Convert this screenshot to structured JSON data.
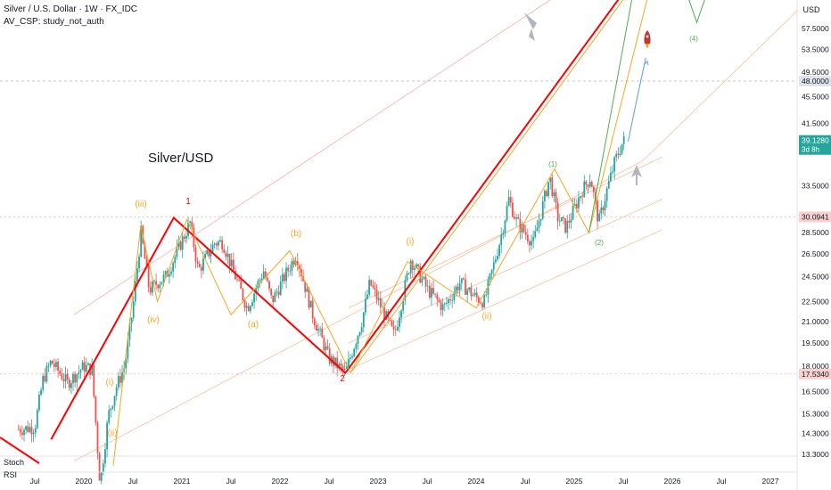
{
  "header": {
    "title": "Silver / U.S. Dollar · 1W · FX_IDC",
    "indicator": "AV_CSP: study_not_auth"
  },
  "annotation_text": "Silver/USD",
  "price_axis": {
    "currency": "USD",
    "ticks": [
      "57.5000",
      "53.5000",
      "49.5000",
      "45.5000",
      "41.5000",
      "33.5000",
      "28.5000",
      "26.5000",
      "24.5000",
      "22.5000",
      "21.0000",
      "19.5000",
      "18.0000",
      "16.5000",
      "15.3000",
      "14.3000",
      "13.3000"
    ],
    "tags": [
      {
        "label": "48.0000",
        "value": 48.0,
        "style": "gray"
      },
      {
        "label": "39.1280",
        "sub": "3d 8h",
        "value": 39.128,
        "style": "green"
      },
      {
        "label": "30.0941",
        "value": 30.0941,
        "style": "pink"
      },
      {
        "label": "17.5340",
        "value": 17.534,
        "style": "pink"
      }
    ]
  },
  "time_axis": {
    "labels": [
      "Jul",
      "2020",
      "Jul",
      "2021",
      "Jul",
      "2022",
      "Jul",
      "2023",
      "Jul",
      "2024",
      "Jul",
      "2025",
      "Jul",
      "2026",
      "Jul",
      "2027"
    ]
  },
  "pane": {
    "stoch_label": "Stoch",
    "rsi_label": "RSI"
  },
  "colors": {
    "up": "#26a69a",
    "down": "#ef5350",
    "impulse": "#ff0000",
    "wave": "#f5a623",
    "projection": "#4caf50",
    "projection2": "#5b9bd5",
    "channel": "#f4a3a3",
    "arrow": "#b2b5be"
  },
  "wave_labels": [
    {
      "text": "(iii)",
      "color": "#f5a623"
    },
    {
      "text": "(iv)",
      "color": "#f5a623"
    },
    {
      "text": "(i)",
      "color": "#f5a623"
    },
    {
      "text": "(ii)",
      "color": "#f5a623"
    },
    {
      "text": "1",
      "color": "#ff0000"
    },
    {
      "text": "(1)",
      "color": "#f5a623"
    },
    {
      "text": "(a)",
      "color": "#f5a623"
    },
    {
      "text": "(b)",
      "color": "#f5a623"
    },
    {
      "text": "2",
      "color": "#ff0000"
    },
    {
      "text": "(2)",
      "color": "#f5a623"
    },
    {
      "text": "(i)",
      "color": "#f5a623"
    },
    {
      "text": "(ii)",
      "color": "#f5a623"
    },
    {
      "text": "(1)",
      "color": "#4caf50"
    },
    {
      "text": "(2)",
      "color": "#4caf50"
    },
    {
      "text": "(4)",
      "color": "#4caf50"
    }
  ],
  "chart_data": {
    "type": "candlestick",
    "symbol": "Silver / U.S. Dollar",
    "interval": "1W",
    "last_price": 39.128,
    "ylim": [
      12.9,
      65.0
    ],
    "y_scale": "log",
    "price_path": [
      [
        "2019-05",
        14.5
      ],
      [
        "2019-07",
        14.6
      ],
      [
        "2019-08",
        17.2
      ],
      [
        "2019-09",
        18.3
      ],
      [
        "2019-11",
        17.0
      ],
      [
        "2020-01",
        18.0
      ],
      [
        "2020-02",
        17.8
      ],
      [
        "2020-03",
        12.0
      ],
      [
        "2020-04",
        15.2
      ],
      [
        "2020-05",
        16.8
      ],
      [
        "2020-06",
        18.0
      ],
      [
        "2020-07",
        22.0
      ],
      [
        "2020-08",
        28.5
      ],
      [
        "2020-09",
        23.4
      ],
      [
        "2020-10",
        24.0
      ],
      [
        "2020-11",
        24.5
      ],
      [
        "2020-12",
        26.0
      ],
      [
        "2021-02",
        29.5
      ],
      [
        "2021-03",
        25.0
      ],
      [
        "2021-05",
        27.5
      ],
      [
        "2021-06",
        27.6
      ],
      [
        "2021-07",
        25.5
      ],
      [
        "2021-09",
        22.0
      ],
      [
        "2021-11",
        25.0
      ],
      [
        "2021-12",
        22.5
      ],
      [
        "2022-03",
        26.5
      ],
      [
        "2022-05",
        21.5
      ],
      [
        "2022-07",
        18.5
      ],
      [
        "2022-09",
        17.6
      ],
      [
        "2022-11",
        21.0
      ],
      [
        "2022-12",
        24.0
      ],
      [
        "2023-03",
        20.0
      ],
      [
        "2023-05",
        26.0
      ],
      [
        "2023-07",
        23.5
      ],
      [
        "2023-09",
        22.0
      ],
      [
        "2023-11",
        24.0
      ],
      [
        "2024-01",
        22.8
      ],
      [
        "2024-02",
        22.5
      ],
      [
        "2024-04",
        28.0
      ],
      [
        "2024-05",
        32.0
      ],
      [
        "2024-06",
        29.5
      ],
      [
        "2024-08",
        27.5
      ],
      [
        "2024-10",
        34.5
      ],
      [
        "2024-11",
        30.0
      ],
      [
        "2024-12",
        29.0
      ],
      [
        "2025-02",
        33.0
      ],
      [
        "2025-03",
        34.5
      ],
      [
        "2025-04",
        29.5
      ],
      [
        "2025-05",
        33.0
      ],
      [
        "2025-06",
        36.5
      ],
      [
        "2025-07",
        39.1
      ]
    ],
    "trendlines": [
      {
        "name": "impulse",
        "color": "#ff0000",
        "points": [
          [
            "2019-09",
            14.0
          ],
          [
            "2020-12",
            30.0
          ],
          [
            "2022-09",
            17.6
          ],
          [
            "2025-07",
            65.0
          ]
        ]
      }
    ]
  }
}
